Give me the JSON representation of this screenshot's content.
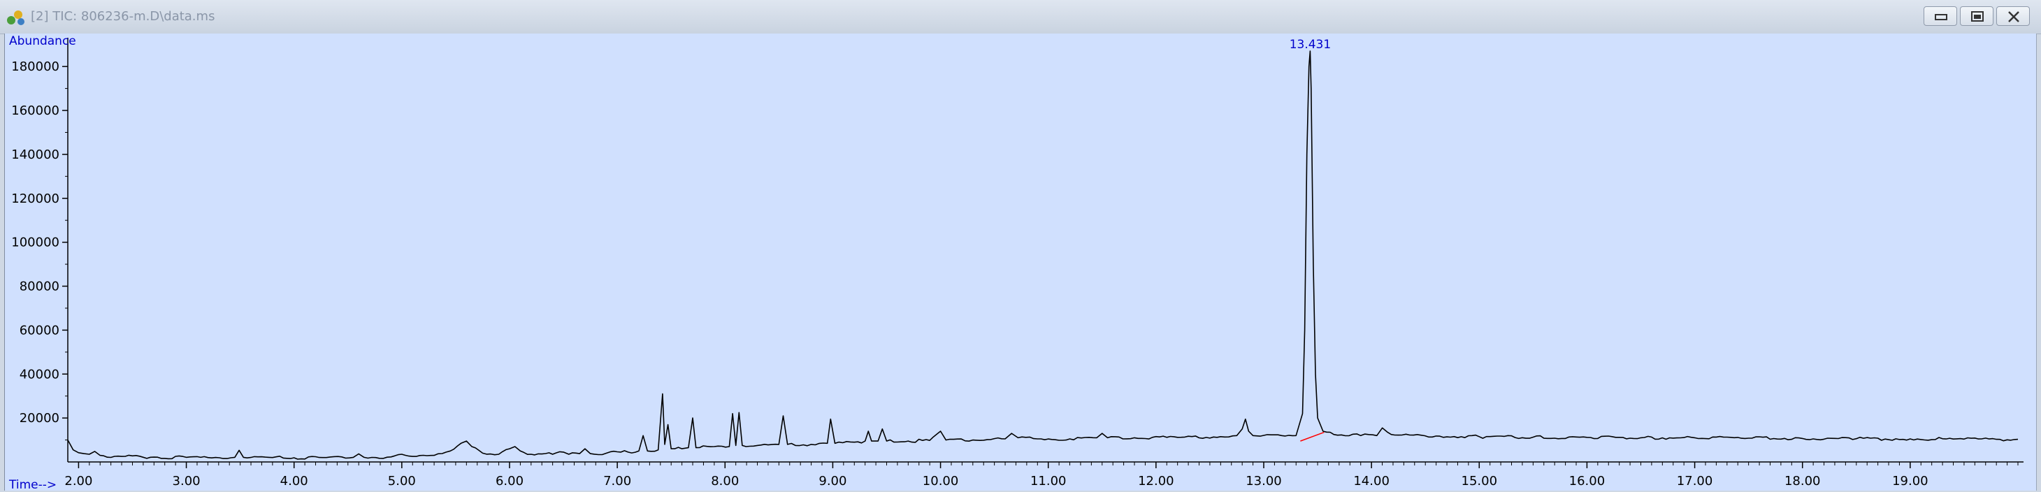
{
  "window": {
    "title": "[2] TIC: 806236-m.D\\data.ms",
    "icon": "chromatogram-app-icon",
    "buttons": [
      "minimize",
      "restore",
      "close"
    ]
  },
  "colors": {
    "plot_background": "#d0e0fe",
    "trace": "#000000",
    "label_blue": "#0000cc",
    "baseline_marker": "#ff0000"
  },
  "chart_data": {
    "type": "line",
    "ylabel": "Abundance",
    "xlabel": "Time-->",
    "xlim": [
      1.9,
      20.0
    ],
    "ylim": [
      0,
      188000
    ],
    "x_ticks": [
      "2.00",
      "3.00",
      "4.00",
      "5.00",
      "6.00",
      "7.00",
      "8.00",
      "9.00",
      "10.00",
      "11.00",
      "12.00",
      "13.00",
      "14.00",
      "15.00",
      "16.00",
      "17.00",
      "18.00",
      "19.00"
    ],
    "y_ticks": [
      "20000",
      "40000",
      "60000",
      "80000",
      "100000",
      "120000",
      "140000",
      "160000",
      "180000"
    ],
    "grid": false,
    "legend": "none",
    "peak_labels": [
      {
        "time": 13.431,
        "abundance": 187000,
        "text": "13.431"
      }
    ],
    "series": [
      {
        "points": [
          [
            1.9,
            10000
          ],
          [
            1.95,
            5500
          ],
          [
            2.0,
            4200
          ],
          [
            2.05,
            3800
          ],
          [
            2.1,
            3500
          ],
          [
            2.15,
            4800
          ],
          [
            2.2,
            3000
          ],
          [
            2.4,
            2500
          ],
          [
            2.7,
            2200
          ],
          [
            3.0,
            2100
          ],
          [
            3.2,
            2000
          ],
          [
            3.45,
            2100
          ],
          [
            3.49,
            5300
          ],
          [
            3.53,
            2100
          ],
          [
            3.8,
            2000
          ],
          [
            4.0,
            1900
          ],
          [
            4.3,
            2000
          ],
          [
            4.55,
            2100
          ],
          [
            4.6,
            3700
          ],
          [
            4.65,
            2100
          ],
          [
            4.9,
            2300
          ],
          [
            5.0,
            3500
          ],
          [
            5.1,
            2500
          ],
          [
            5.3,
            3000
          ],
          [
            5.45,
            5000
          ],
          [
            5.55,
            8500
          ],
          [
            5.6,
            9500
          ],
          [
            5.65,
            7000
          ],
          [
            5.75,
            4000
          ],
          [
            5.9,
            3500
          ],
          [
            6.0,
            6000
          ],
          [
            6.05,
            7000
          ],
          [
            6.1,
            5000
          ],
          [
            6.2,
            3500
          ],
          [
            6.4,
            3500
          ],
          [
            6.5,
            4500
          ],
          [
            6.55,
            3500
          ],
          [
            6.65,
            3800
          ],
          [
            6.7,
            6000
          ],
          [
            6.75,
            3800
          ],
          [
            6.9,
            4000
          ],
          [
            7.1,
            4500
          ],
          [
            7.2,
            5000
          ],
          [
            7.24,
            12000
          ],
          [
            7.28,
            5000
          ],
          [
            7.38,
            5500
          ],
          [
            7.42,
            31000
          ],
          [
            7.44,
            8000
          ],
          [
            7.47,
            17000
          ],
          [
            7.5,
            6000
          ],
          [
            7.6,
            6000
          ],
          [
            7.66,
            6500
          ],
          [
            7.7,
            20000
          ],
          [
            7.73,
            6500
          ],
          [
            7.9,
            7000
          ],
          [
            8.04,
            7000
          ],
          [
            8.07,
            22000
          ],
          [
            8.1,
            7500
          ],
          [
            8.13,
            22500
          ],
          [
            8.16,
            7500
          ],
          [
            8.3,
            7500
          ],
          [
            8.5,
            8000
          ],
          [
            8.54,
            21000
          ],
          [
            8.58,
            8000
          ],
          [
            8.8,
            8000
          ],
          [
            8.95,
            8500
          ],
          [
            8.98,
            19500
          ],
          [
            9.02,
            8500
          ],
          [
            9.2,
            9000
          ],
          [
            9.3,
            9500
          ],
          [
            9.33,
            14000
          ],
          [
            9.36,
            9500
          ],
          [
            9.42,
            9500
          ],
          [
            9.46,
            15000
          ],
          [
            9.5,
            9500
          ],
          [
            9.7,
            9500
          ],
          [
            9.9,
            9800
          ],
          [
            10.0,
            14000
          ],
          [
            10.05,
            10000
          ],
          [
            10.3,
            10000
          ],
          [
            10.6,
            10500
          ],
          [
            10.66,
            13000
          ],
          [
            10.72,
            11000
          ],
          [
            10.9,
            10500
          ],
          [
            11.2,
            10500
          ],
          [
            11.45,
            11000
          ],
          [
            11.5,
            13000
          ],
          [
            11.55,
            11000
          ],
          [
            11.8,
            11000
          ],
          [
            12.2,
            11200
          ],
          [
            12.6,
            11500
          ],
          [
            12.75,
            12000
          ],
          [
            12.8,
            15000
          ],
          [
            12.83,
            19500
          ],
          [
            12.86,
            14000
          ],
          [
            12.9,
            12000
          ],
          [
            13.2,
            11800
          ],
          [
            13.3,
            12000
          ],
          [
            13.36,
            22000
          ],
          [
            13.38,
            60000
          ],
          [
            13.4,
            140000
          ],
          [
            13.42,
            180000
          ],
          [
            13.431,
            187000
          ],
          [
            13.44,
            170000
          ],
          [
            13.46,
            90000
          ],
          [
            13.48,
            40000
          ],
          [
            13.5,
            20000
          ],
          [
            13.55,
            14000
          ],
          [
            13.65,
            12500
          ],
          [
            13.9,
            12000
          ],
          [
            14.05,
            12000
          ],
          [
            14.1,
            15500
          ],
          [
            14.15,
            13500
          ],
          [
            14.25,
            12200
          ],
          [
            14.6,
            11800
          ],
          [
            15.0,
            11500
          ],
          [
            15.5,
            11300
          ],
          [
            16.0,
            11200
          ],
          [
            16.5,
            11000
          ],
          [
            17.0,
            11000
          ],
          [
            17.5,
            10800
          ],
          [
            18.0,
            10700
          ],
          [
            18.5,
            10600
          ],
          [
            19.0,
            10500
          ],
          [
            19.5,
            10400
          ],
          [
            20.0,
            10300
          ]
        ]
      }
    ]
  }
}
